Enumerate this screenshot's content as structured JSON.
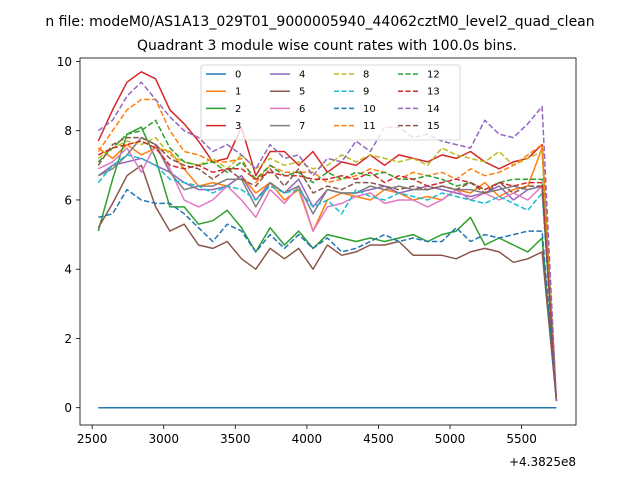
{
  "figure": {
    "suptitle": "n file: modeM0/AS1A13_029T01_9000005940_44062cztM0_level2_quad_clean",
    "offset_label": "+4.3825e8"
  },
  "chart_data": {
    "type": "line",
    "title": "Quadrant 3 module wise count rates with 100.0s bins.",
    "xlabel": "",
    "ylabel": "",
    "xlim": [
      2415,
      5880
    ],
    "ylim": [
      -0.5,
      10.1
    ],
    "x_offset": 438250000,
    "xticks": [
      2500,
      3000,
      3500,
      4000,
      4500,
      5000,
      5500
    ],
    "yticks": [
      0,
      2,
      4,
      6,
      8,
      10
    ],
    "grid": false,
    "legend": {
      "placement": "top-center",
      "columns": 4
    },
    "x": [
      2543,
      2643,
      2743,
      2843,
      2943,
      3043,
      3143,
      3243,
      3343,
      3443,
      3543,
      3643,
      3743,
      3843,
      3943,
      4043,
      4143,
      4243,
      4343,
      4443,
      4543,
      4643,
      4743,
      4843,
      4943,
      5043,
      5143,
      5243,
      5343,
      5443,
      5543,
      5643,
      5743
    ],
    "series": [
      {
        "name": "0",
        "color": "#1f77b4",
        "dash": "solid",
        "values": [
          0,
          0,
          0,
          0,
          0,
          0,
          0,
          0,
          0,
          0,
          0,
          0,
          0,
          0,
          0,
          0,
          0,
          0,
          0,
          0,
          0,
          0,
          0,
          0,
          0,
          0,
          0,
          0,
          0,
          0,
          0,
          0,
          0
        ]
      },
      {
        "name": "1",
        "color": "#ff7f0e",
        "dash": "solid",
        "values": [
          7.5,
          7.2,
          7.6,
          7.3,
          7.5,
          7.4,
          6.9,
          6.4,
          6.5,
          6.4,
          6.7,
          6.2,
          6.5,
          6.0,
          6.3,
          5.1,
          6.0,
          6.2,
          6.1,
          6.0,
          6.3,
          6.2,
          6.0,
          6.1,
          6.0,
          6.3,
          6.2,
          6.5,
          6.1,
          6.3,
          6.4,
          7.5,
          0.2
        ]
      },
      {
        "name": "2",
        "color": "#2ca02c",
        "dash": "solid",
        "values": [
          5.1,
          6.6,
          7.9,
          8.1,
          7.2,
          5.8,
          5.8,
          5.3,
          5.4,
          5.7,
          5.2,
          4.5,
          5.2,
          4.7,
          5.1,
          4.6,
          5.0,
          4.9,
          4.8,
          4.9,
          4.8,
          4.9,
          5.0,
          4.8,
          5.0,
          5.1,
          5.5,
          4.7,
          4.9,
          4.7,
          4.5,
          4.9,
          0.2
        ]
      },
      {
        "name": "3",
        "color": "#d62728",
        "dash": "solid",
        "values": [
          7.7,
          8.6,
          9.4,
          9.7,
          9.5,
          8.6,
          8.2,
          7.7,
          7.1,
          7.2,
          8.1,
          6.7,
          7.4,
          7.4,
          7.0,
          7.4,
          6.8,
          7.1,
          7.0,
          7.3,
          7.0,
          7.3,
          7.2,
          7.1,
          7.3,
          7.2,
          7.4,
          7.1,
          6.9,
          7.1,
          7.2,
          7.6,
          0.2
        ]
      },
      {
        "name": "4",
        "color": "#9467bd",
        "dash": "solid",
        "values": [
          6.7,
          7.0,
          7.1,
          7.2,
          7.0,
          6.8,
          6.5,
          6.3,
          6.3,
          6.4,
          6.7,
          6.0,
          6.5,
          6.2,
          6.6,
          5.8,
          6.3,
          6.2,
          6.2,
          6.3,
          6.4,
          6.2,
          6.3,
          6.4,
          6.3,
          6.2,
          6.1,
          6.2,
          6.4,
          6.0,
          6.3,
          6.4,
          0.2
        ]
      },
      {
        "name": "5",
        "color": "#8c564b",
        "dash": "solid",
        "values": [
          5.2,
          5.9,
          6.7,
          7.0,
          5.8,
          5.1,
          5.3,
          4.7,
          4.6,
          4.8,
          4.3,
          4.0,
          4.6,
          4.3,
          4.6,
          4.0,
          4.7,
          4.4,
          4.5,
          4.7,
          4.7,
          4.8,
          4.4,
          4.4,
          4.4,
          4.3,
          4.5,
          4.6,
          4.5,
          4.2,
          4.3,
          4.5,
          0.2
        ]
      },
      {
        "name": "6",
        "color": "#e377c2",
        "dash": "solid",
        "values": [
          6.9,
          7.1,
          7.5,
          6.8,
          7.6,
          6.9,
          6.0,
          5.8,
          6.0,
          6.4,
          6.0,
          5.5,
          6.3,
          5.9,
          6.4,
          5.1,
          5.8,
          5.9,
          6.1,
          6.2,
          5.9,
          6.0,
          6.0,
          5.8,
          6.0,
          6.3,
          6.0,
          6.2,
          6.0,
          6.2,
          6.0,
          6.4,
          0.2
        ]
      },
      {
        "name": "7",
        "color": "#7f7f7f",
        "dash": "solid",
        "values": [
          6.7,
          6.9,
          7.3,
          7.8,
          7.6,
          6.8,
          6.3,
          6.4,
          6.4,
          6.6,
          6.6,
          5.8,
          6.5,
          6.2,
          6.4,
          5.6,
          6.3,
          6.2,
          6.2,
          6.4,
          6.3,
          6.4,
          6.3,
          6.3,
          6.4,
          6.3,
          6.3,
          6.2,
          6.3,
          6.4,
          6.3,
          6.4,
          0.2
        ]
      },
      {
        "name": "8",
        "color": "#bcbd22",
        "dash": "dashed",
        "values": [
          7.2,
          7.5,
          7.7,
          7.6,
          7.8,
          7.3,
          7.1,
          7.0,
          7.2,
          6.9,
          7.3,
          6.9,
          7.2,
          7.0,
          7.1,
          6.9,
          7.0,
          7.3,
          7.1,
          7.3,
          7.2,
          7.1,
          7.2,
          7.0,
          7.5,
          7.3,
          7.2,
          7.1,
          7.4,
          7.0,
          7.2,
          7.4,
          0.2
        ]
      },
      {
        "name": "9",
        "color": "#17becf",
        "dash": "dashed",
        "values": [
          6.5,
          7.0,
          7.3,
          7.2,
          7.0,
          6.6,
          6.5,
          6.4,
          6.2,
          6.4,
          6.3,
          6.0,
          6.4,
          6.2,
          6.3,
          5.8,
          6.0,
          5.6,
          6.3,
          6.1,
          6.0,
          6.2,
          6.1,
          6.0,
          6.2,
          6.1,
          6.0,
          5.9,
          6.1,
          5.9,
          5.7,
          6.2,
          0.2
        ]
      },
      {
        "name": "10",
        "color": "#1f77b4",
        "dash": "dashed",
        "values": [
          5.5,
          5.6,
          6.3,
          6.0,
          5.9,
          5.9,
          5.6,
          5.2,
          4.8,
          5.3,
          5.1,
          4.5,
          5.0,
          4.6,
          5.0,
          4.6,
          4.9,
          4.5,
          4.6,
          4.8,
          5.0,
          4.8,
          4.9,
          4.8,
          4.8,
          5.2,
          4.8,
          5.0,
          4.9,
          5.0,
          5.1,
          5.1,
          0.2
        ]
      },
      {
        "name": "11",
        "color": "#ff7f0e",
        "dash": "dashed",
        "values": [
          7.4,
          8.0,
          8.6,
          8.9,
          8.9,
          8.0,
          7.4,
          7.3,
          7.1,
          7.1,
          7.2,
          6.5,
          7.0,
          6.8,
          6.8,
          6.8,
          6.5,
          6.6,
          6.7,
          6.9,
          6.8,
          6.6,
          6.8,
          6.7,
          6.8,
          6.6,
          6.9,
          6.7,
          6.8,
          7.0,
          7.3,
          7.6,
          0.2
        ]
      },
      {
        "name": "12",
        "color": "#2ca02c",
        "dash": "dashed",
        "values": [
          7.1,
          7.5,
          7.9,
          8.0,
          8.3,
          7.5,
          7.1,
          7.0,
          7.1,
          6.8,
          7.1,
          6.6,
          7.0,
          6.7,
          6.8,
          6.5,
          6.8,
          6.6,
          6.8,
          6.7,
          6.8,
          6.6,
          6.6,
          6.7,
          6.6,
          6.4,
          6.5,
          6.3,
          6.5,
          6.6,
          6.6,
          6.6,
          0.2
        ]
      },
      {
        "name": "13",
        "color": "#d62728",
        "dash": "dashed",
        "values": [
          7.3,
          7.5,
          7.6,
          7.7,
          7.5,
          7.0,
          6.9,
          7.0,
          6.8,
          6.9,
          6.9,
          6.6,
          6.8,
          6.7,
          6.7,
          6.6,
          6.6,
          6.7,
          6.6,
          6.8,
          6.5,
          6.7,
          6.6,
          6.4,
          6.5,
          6.6,
          6.5,
          6.3,
          6.5,
          6.4,
          6.5,
          6.5,
          0.2
        ]
      },
      {
        "name": "14",
        "color": "#9467bd",
        "dash": "dashed",
        "values": [
          8.0,
          8.3,
          9.0,
          9.4,
          8.9,
          8.4,
          8.0,
          7.8,
          7.4,
          7.6,
          7.3,
          6.9,
          7.6,
          7.2,
          7.3,
          6.7,
          7.2,
          7.1,
          7.7,
          7.4,
          8.1,
          8.1,
          7.8,
          7.9,
          7.7,
          7.6,
          7.5,
          8.3,
          7.9,
          7.8,
          8.2,
          8.7,
          0.2
        ]
      },
      {
        "name": "15",
        "color": "#8c564b",
        "dash": "dashed",
        "values": [
          7.0,
          7.6,
          7.8,
          7.8,
          7.6,
          7.2,
          7.0,
          6.9,
          6.6,
          6.9,
          6.6,
          6.4,
          6.9,
          6.4,
          6.9,
          6.2,
          6.4,
          6.3,
          6.5,
          6.5,
          6.4,
          6.3,
          6.4,
          6.3,
          6.4,
          6.3,
          6.5,
          6.2,
          6.5,
          6.2,
          6.4,
          6.4,
          0.2
        ]
      }
    ]
  }
}
